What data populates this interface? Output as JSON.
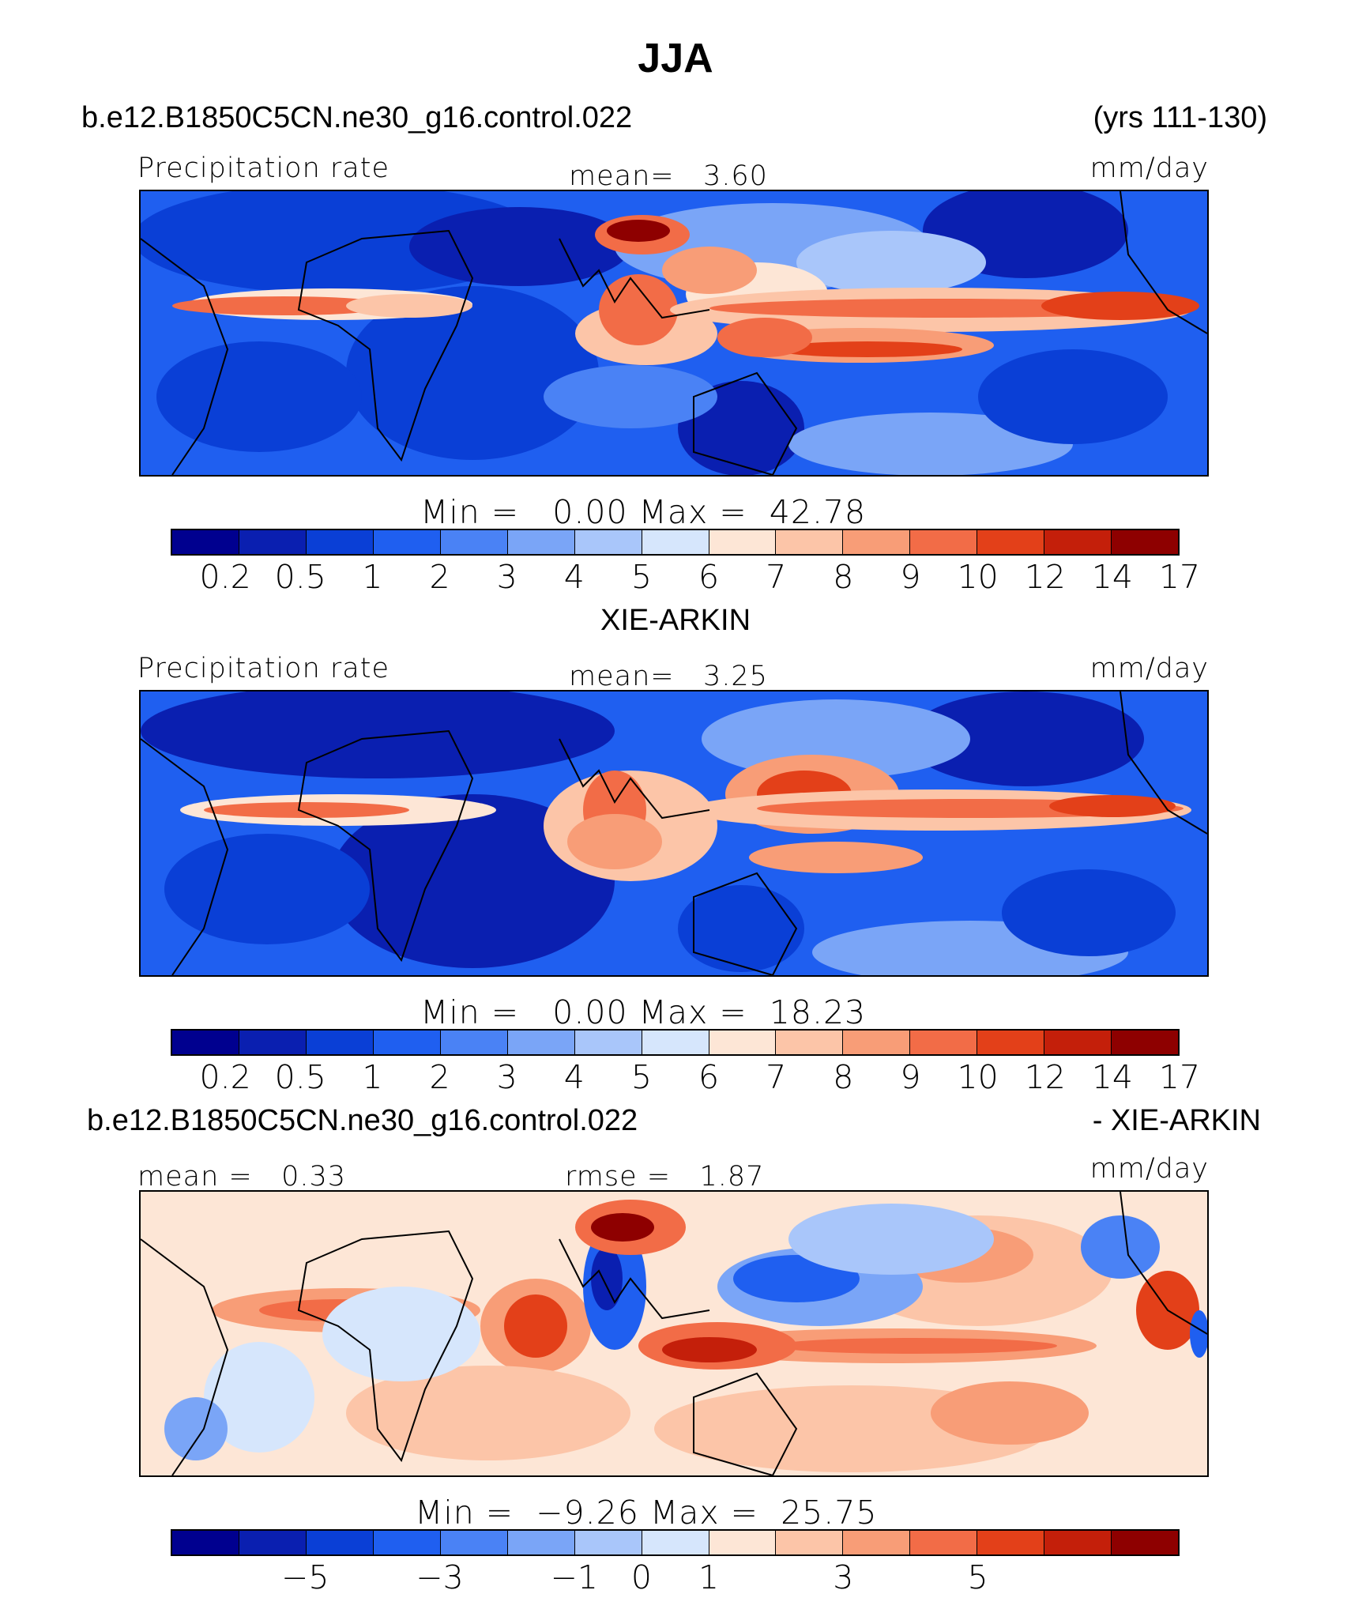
{
  "title": "JJA",
  "case_name": "b.e12.B1850C5CN.ne30_g16.control.022",
  "years": "(yrs 111-130)",
  "palette": [
    "#00008f",
    "#0a1fb0",
    "#0a3fd6",
    "#1f5ff0",
    "#4a82f5",
    "#7aa5f7",
    "#a9c6fa",
    "#d6e6fc",
    "#fde6d6",
    "#fcc5a8",
    "#f89d77",
    "#f26c47",
    "#e34019",
    "#c41f0a",
    "#8e0000"
  ],
  "panels": [
    {
      "id": "model",
      "left_label": "Precipitation rate",
      "center_label": "mean=   3.60",
      "units": "mm/day",
      "minmax": "Min =   0.00 Max =  42.78",
      "colorbar_ticks": [
        "0.2",
        "0.5",
        "1",
        "2",
        "3",
        "4",
        "5",
        "6",
        "7",
        "8",
        "9",
        "10",
        "12",
        "14",
        "17"
      ]
    },
    {
      "id": "obs",
      "top_title": "XIE-ARKIN",
      "left_label": "Precipitation rate",
      "center_label": "mean=   3.25",
      "units": "mm/day",
      "minmax": "Min =   0.00 Max =  18.23",
      "colorbar_ticks": [
        "0.2",
        "0.5",
        "1",
        "2",
        "3",
        "4",
        "5",
        "6",
        "7",
        "8",
        "9",
        "10",
        "12",
        "14",
        "17"
      ]
    },
    {
      "id": "diff",
      "top_title_left": "b.e12.B1850C5CN.ne30_g16.control.022",
      "top_title_right": "- XIE-ARKIN",
      "left_label": "mean =   0.33",
      "center_label": "rmse =   1.87",
      "units": "mm/day",
      "minmax": "Min =  −9.26 Max =  25.75",
      "colorbar_ticks": [
        "−5",
        "−3",
        "−1",
        "0",
        "1",
        "3",
        "5"
      ]
    }
  ],
  "chart_data": {
    "type": "heatmap",
    "title": "JJA",
    "subtitle_left": "b.e12.B1850C5CN.ne30_g16.control.022",
    "subtitle_right": "(yrs 111-130)",
    "variable": "Precipitation rate",
    "units": "mm/day",
    "maps": [
      {
        "name": "b.e12.B1850C5CN.ne30_g16.control.022",
        "mean": 3.6,
        "min": 0.0,
        "max": 42.78,
        "levels": [
          0.2,
          0.5,
          1,
          2,
          3,
          4,
          5,
          6,
          7,
          8,
          9,
          10,
          12,
          14,
          17
        ]
      },
      {
        "name": "XIE-ARKIN",
        "mean": 3.25,
        "min": 0.0,
        "max": 18.23,
        "levels": [
          0.2,
          0.5,
          1,
          2,
          3,
          4,
          5,
          6,
          7,
          8,
          9,
          10,
          12,
          14,
          17
        ]
      },
      {
        "name": "b.e12.B1850C5CN.ne30_g16.control.022 - XIE-ARKIN",
        "mean": 0.33,
        "rmse": 1.87,
        "min": -9.26,
        "max": 25.75,
        "levels": [
          -5,
          -3,
          -1,
          0,
          1,
          3,
          5
        ]
      }
    ]
  }
}
